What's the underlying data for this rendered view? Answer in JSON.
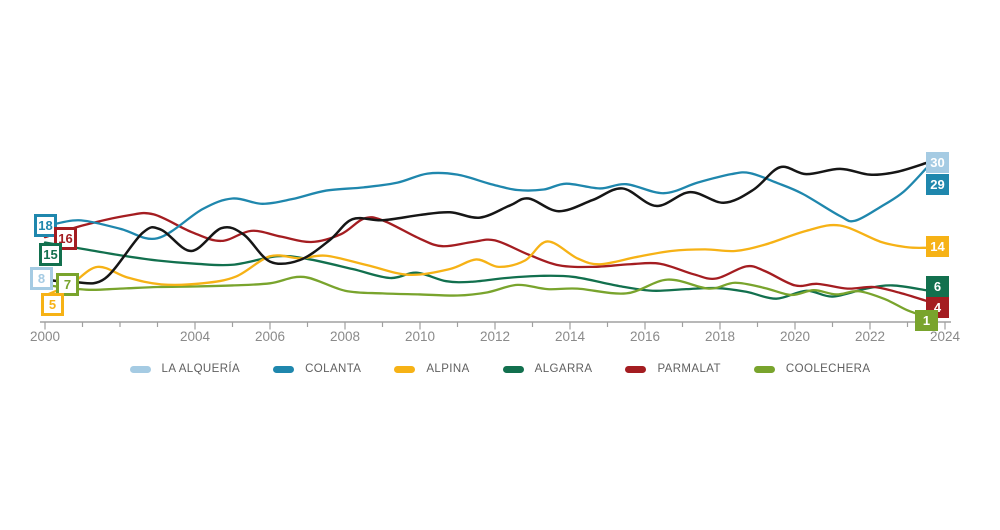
{
  "chart_data": {
    "type": "line",
    "title": "",
    "x_axis": {
      "year_min": 2000,
      "year_max": 2024,
      "minor_ticks_every": 1,
      "labels": [
        "2000",
        "2004",
        "2006",
        "2008",
        "2010",
        "2012",
        "2014",
        "2016",
        "2018",
        "2020",
        "2022",
        "2024"
      ]
    },
    "y_axis": {
      "visible": false,
      "implied_range": [
        0,
        32
      ]
    },
    "grid": false,
    "legend_position": "bottom-center",
    "series": [
      {
        "id": "la_alqueria",
        "name": "LA ALQUERÍA",
        "line_color": "#161616",
        "accent_color": "#a5cbe3",
        "start_label": "8",
        "end_label": "30",
        "points": [
          [
            2000,
            8
          ],
          [
            2000.8,
            7.5
          ],
          [
            2001.6,
            8.2
          ],
          [
            2002.6,
            16.8
          ],
          [
            2003.1,
            17.4
          ],
          [
            2003.9,
            13.4
          ],
          [
            2004.7,
            17.7
          ],
          [
            2005.3,
            16.5
          ],
          [
            2006,
            11.4
          ],
          [
            2006.8,
            11.7
          ],
          [
            2007.6,
            15.5
          ],
          [
            2008.2,
            19.4
          ],
          [
            2009,
            19.2
          ],
          [
            2010,
            20.2
          ],
          [
            2010.8,
            20.7
          ],
          [
            2011.6,
            19.7
          ],
          [
            2012.4,
            22
          ],
          [
            2012.9,
            23.3
          ],
          [
            2013.7,
            20.9
          ],
          [
            2014.6,
            23
          ],
          [
            2015.4,
            25.2
          ],
          [
            2016.3,
            21.9
          ],
          [
            2017.2,
            24.5
          ],
          [
            2018.1,
            22.5
          ],
          [
            2018.9,
            25
          ],
          [
            2019.6,
            29.2
          ],
          [
            2020.3,
            27.9
          ],
          [
            2021.2,
            28.9
          ],
          [
            2022,
            27.8
          ],
          [
            2022.7,
            28.3
          ],
          [
            2023.5,
            30
          ]
        ]
      },
      {
        "id": "colanta",
        "name": "COLANTA",
        "line_color": "#1f87ad",
        "accent_color": "#1f87ad",
        "start_label": "18",
        "end_label": "29",
        "points": [
          [
            2000,
            18
          ],
          [
            2000.9,
            19.2
          ],
          [
            2002,
            17.6
          ],
          [
            2003,
            15.8
          ],
          [
            2004.2,
            21.3
          ],
          [
            2005,
            23.3
          ],
          [
            2005.8,
            22.3
          ],
          [
            2006.6,
            23.2
          ],
          [
            2007.5,
            24.8
          ],
          [
            2008.5,
            25.4
          ],
          [
            2009.4,
            26.3
          ],
          [
            2010.2,
            28
          ],
          [
            2011,
            27.8
          ],
          [
            2011.9,
            26
          ],
          [
            2012.6,
            24.9
          ],
          [
            2013.3,
            25
          ],
          [
            2013.9,
            26.1
          ],
          [
            2014.8,
            25.2
          ],
          [
            2015.5,
            26
          ],
          [
            2016.5,
            24.3
          ],
          [
            2017.4,
            26.3
          ],
          [
            2018.3,
            27.9
          ],
          [
            2018.8,
            28.1
          ],
          [
            2019.5,
            26.3
          ],
          [
            2020.2,
            24.2
          ],
          [
            2021.2,
            20
          ],
          [
            2021.6,
            19.1
          ],
          [
            2022.3,
            21.8
          ],
          [
            2022.9,
            24.6
          ],
          [
            2023.5,
            29
          ]
        ]
      },
      {
        "id": "alpina",
        "name": "ALPINA",
        "line_color": "#f6b216",
        "accent_color": "#f6b216",
        "start_label": "5",
        "end_label": "14",
        "points": [
          [
            2000,
            5
          ],
          [
            2000.7,
            7.2
          ],
          [
            2001.4,
            10.4
          ],
          [
            2002.2,
            8.4
          ],
          [
            2003.1,
            7.1
          ],
          [
            2004.2,
            7.3
          ],
          [
            2005.1,
            8.6
          ],
          [
            2006,
            12.4
          ],
          [
            2006.8,
            12
          ],
          [
            2007.5,
            12.5
          ],
          [
            2008.6,
            10.7
          ],
          [
            2009.7,
            8.9
          ],
          [
            2010.8,
            10
          ],
          [
            2011.5,
            11.8
          ],
          [
            2012.1,
            10.4
          ],
          [
            2012.8,
            11.6
          ],
          [
            2013.4,
            15.2
          ],
          [
            2014.2,
            12
          ],
          [
            2014.8,
            10.9
          ],
          [
            2015.8,
            12.3
          ],
          [
            2016.7,
            13.4
          ],
          [
            2017.6,
            13.7
          ],
          [
            2018.4,
            13.4
          ],
          [
            2019.2,
            14.6
          ],
          [
            2020.3,
            17.2
          ],
          [
            2021.2,
            18.2
          ],
          [
            2022.3,
            15.1
          ],
          [
            2023,
            14.1
          ],
          [
            2023.5,
            14
          ]
        ]
      },
      {
        "id": "algarra",
        "name": "ALGARRA",
        "line_color": "#12704e",
        "accent_color": "#12704e",
        "start_label": "15",
        "end_label": "6",
        "points": [
          [
            2000,
            15
          ],
          [
            2001,
            13.8
          ],
          [
            2002,
            12.6
          ],
          [
            2003,
            11.6
          ],
          [
            2004,
            11
          ],
          [
            2005,
            10.8
          ],
          [
            2006.2,
            12.4
          ],
          [
            2007,
            11.9
          ],
          [
            2008.2,
            10
          ],
          [
            2009.2,
            8.3
          ],
          [
            2009.9,
            9.3
          ],
          [
            2010.7,
            7.7
          ],
          [
            2011.4,
            7.6
          ],
          [
            2012.3,
            8.3
          ],
          [
            2013.2,
            8.7
          ],
          [
            2014.1,
            8.5
          ],
          [
            2015.3,
            6.8
          ],
          [
            2016.2,
            5.9
          ],
          [
            2017.1,
            6.2
          ],
          [
            2017.9,
            6.4
          ],
          [
            2018.7,
            5.7
          ],
          [
            2019.5,
            4.4
          ],
          [
            2020.3,
            5.9
          ],
          [
            2021,
            4.8
          ],
          [
            2021.9,
            6.3
          ],
          [
            2022.6,
            6.9
          ],
          [
            2023.5,
            6
          ]
        ]
      },
      {
        "id": "parmalat",
        "name": "PARMALAT",
        "line_color": "#a41d21",
        "accent_color": "#a41d21",
        "start_label": "16",
        "end_label": "4",
        "points": [
          [
            2000,
            16
          ],
          [
            2001,
            18.2
          ],
          [
            2002.2,
            20.1
          ],
          [
            2002.9,
            20.3
          ],
          [
            2003.9,
            17
          ],
          [
            2004.7,
            15.3
          ],
          [
            2005.5,
            17.2
          ],
          [
            2006.3,
            16.1
          ],
          [
            2007.1,
            15.1
          ],
          [
            2007.9,
            16.6
          ],
          [
            2008.5,
            19.5
          ],
          [
            2009,
            19.2
          ],
          [
            2010,
            15.7
          ],
          [
            2010.6,
            14.3
          ],
          [
            2011.4,
            15.1
          ],
          [
            2012,
            15.4
          ],
          [
            2012.9,
            12.7
          ],
          [
            2013.7,
            10.7
          ],
          [
            2014.6,
            10.4
          ],
          [
            2015.6,
            10.9
          ],
          [
            2016.4,
            11
          ],
          [
            2017.3,
            9
          ],
          [
            2017.9,
            8.2
          ],
          [
            2018.7,
            10.5
          ],
          [
            2019.2,
            9.6
          ],
          [
            2020,
            6.9
          ],
          [
            2020.6,
            7.2
          ],
          [
            2021.4,
            6.3
          ],
          [
            2022.1,
            6.6
          ],
          [
            2022.8,
            5.5
          ],
          [
            2023.5,
            4
          ]
        ]
      },
      {
        "id": "coolechera",
        "name": "COOLECHERA",
        "line_color": "#79a42d",
        "accent_color": "#79a42d",
        "start_label": "7",
        "end_label": "1",
        "points": [
          [
            2000,
            7
          ],
          [
            2001.1,
            6.1
          ],
          [
            2002,
            6.3
          ],
          [
            2003,
            6.6
          ],
          [
            2004,
            6.7
          ],
          [
            2005,
            6.9
          ],
          [
            2006,
            7.3
          ],
          [
            2006.9,
            8.5
          ],
          [
            2008,
            5.9
          ],
          [
            2009,
            5.4
          ],
          [
            2010,
            5.2
          ],
          [
            2011,
            5
          ],
          [
            2011.8,
            5.6
          ],
          [
            2012.6,
            7
          ],
          [
            2013.4,
            6.2
          ],
          [
            2014.2,
            6.3
          ],
          [
            2015.5,
            5.4
          ],
          [
            2016.6,
            8
          ],
          [
            2017.7,
            6.3
          ],
          [
            2018.4,
            7.4
          ],
          [
            2019.2,
            6.4
          ],
          [
            2019.9,
            5.1
          ],
          [
            2020.5,
            6
          ],
          [
            2021.1,
            5.2
          ],
          [
            2021.7,
            5.8
          ],
          [
            2022.4,
            4.3
          ],
          [
            2023,
            2.2
          ],
          [
            2023.5,
            1
          ]
        ]
      }
    ]
  },
  "colors": {
    "background": "#ffffff",
    "axis": "#a0a0a0",
    "tick_label": "#8a8a8a",
    "legend_text": "#606060"
  }
}
